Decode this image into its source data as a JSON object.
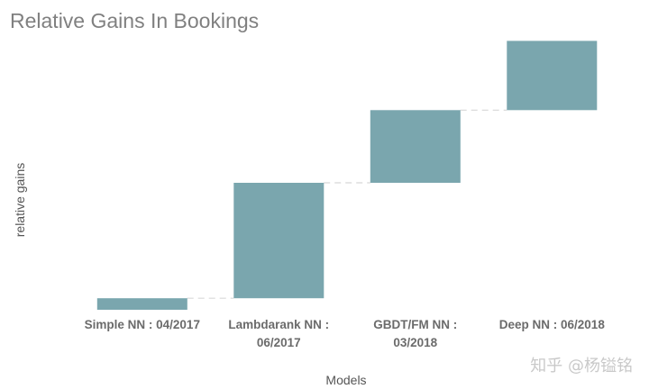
{
  "chart_data": {
    "type": "bar",
    "subtype": "waterfall",
    "title": "Relative Gains In Bookings",
    "xlabel": "Models",
    "ylabel": "relative gains",
    "categories": [
      [
        "Simple NN : 04/2017"
      ],
      [
        "Lambdarank NN :",
        "06/2017"
      ],
      [
        "GBDT/FM NN :",
        "03/2018"
      ],
      [
        "Deep NN : 06/2018"
      ]
    ],
    "bars": [
      {
        "start": 0.0,
        "end": 1.0
      },
      {
        "start": 1.0,
        "end": 11.0
      },
      {
        "start": 11.0,
        "end": 17.3
      },
      {
        "start": 17.3,
        "end": 23.3
      }
    ],
    "ylim": [
      0,
      24.5
    ],
    "grid": false,
    "legend": "none",
    "bar_color": "#7aa6ae"
  },
  "watermark": "知乎 @杨镒铭"
}
